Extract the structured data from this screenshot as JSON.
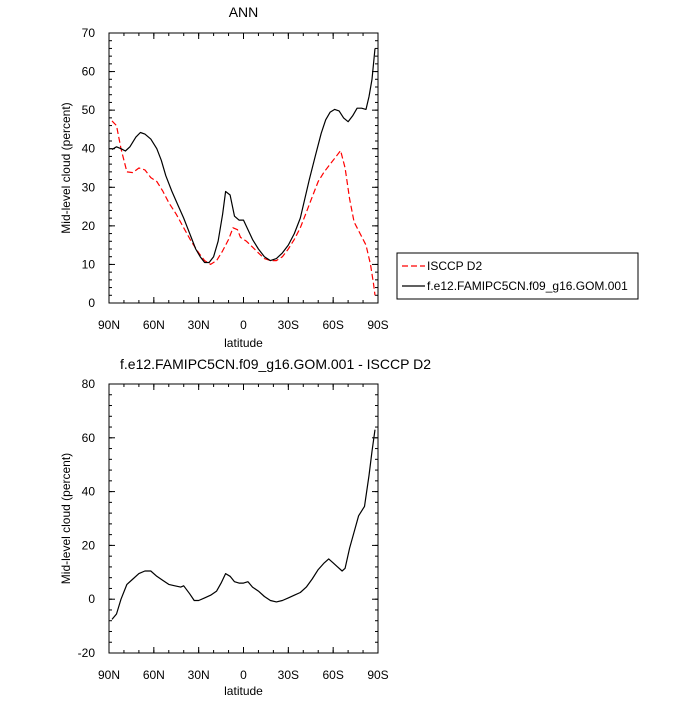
{
  "chart_data": [
    {
      "type": "line",
      "title": "ANN",
      "xlabel": "latitude",
      "ylabel": "Mid-level cloud (percent)",
      "xlim": [
        90,
        -90
      ],
      "ylim": [
        0,
        70
      ],
      "x_tick_values": [
        90,
        60,
        30,
        0,
        -30,
        -60,
        -90
      ],
      "x_tick_labels": [
        "90N",
        "60N",
        "30N",
        "0",
        "30S",
        "60S",
        "90S"
      ],
      "y_tick_values": [
        0,
        10,
        20,
        30,
        40,
        50,
        60,
        70
      ],
      "y_tick_labels": [
        "0",
        "10",
        "20",
        "30",
        "40",
        "50",
        "60",
        "70"
      ],
      "grid": false,
      "legend_position": "right, outside plot",
      "series": [
        {
          "name": "ISCCP D2",
          "color": "#ff0000",
          "dash": "dashed",
          "points": [
            [
              88,
              47.2
            ],
            [
              85,
              46
            ],
            [
              82,
              40
            ],
            [
              78,
              34
            ],
            [
              74,
              33.8
            ],
            [
              70,
              35
            ],
            [
              66,
              34.5
            ],
            [
              62,
              32.5
            ],
            [
              58,
              31.5
            ],
            [
              54,
              29
            ],
            [
              50,
              26
            ],
            [
              45,
              23
            ],
            [
              40,
              19.5
            ],
            [
              35,
              16
            ],
            [
              30,
              13
            ],
            [
              26,
              11
            ],
            [
              22,
              10
            ],
            [
              18,
              11
            ],
            [
              14,
              13.5
            ],
            [
              10,
              16.5
            ],
            [
              7,
              19.5
            ],
            [
              4,
              19
            ],
            [
              2,
              17
            ],
            [
              -2,
              16
            ],
            [
              -6,
              14.5
            ],
            [
              -10,
              13
            ],
            [
              -14,
              11.5
            ],
            [
              -18,
              11
            ],
            [
              -22,
              11
            ],
            [
              -26,
              12
            ],
            [
              -30,
              14
            ],
            [
              -34,
              16.5
            ],
            [
              -38,
              19.5
            ],
            [
              -42,
              23.5
            ],
            [
              -46,
              27.5
            ],
            [
              -50,
              31.5
            ],
            [
              -54,
              34
            ],
            [
              -58,
              36
            ],
            [
              -62,
              38
            ],
            [
              -65,
              39.5
            ],
            [
              -68,
              35
            ],
            [
              -71,
              27
            ],
            [
              -74,
              21
            ],
            [
              -78,
              18
            ],
            [
              -82,
              15
            ],
            [
              -85,
              10
            ],
            [
              -87,
              5
            ],
            [
              -88,
              2
            ]
          ]
        },
        {
          "name": "f.e12.FAMIPC5CN.f09_g16.GOM.001",
          "color": "#000000",
          "dash": "solid",
          "points": [
            [
              88,
              39.8
            ],
            [
              85,
              40.5
            ],
            [
              82,
              40
            ],
            [
              79,
              39.4
            ],
            [
              76,
              40.5
            ],
            [
              72,
              43
            ],
            [
              69,
              44.2
            ],
            [
              66,
              43.8
            ],
            [
              62,
              42.5
            ],
            [
              58,
              40
            ],
            [
              55,
              37
            ],
            [
              52,
              33
            ],
            [
              48,
              29
            ],
            [
              44,
              25.5
            ],
            [
              40,
              22
            ],
            [
              37,
              19
            ],
            [
              35,
              17
            ],
            [
              32,
              14
            ],
            [
              29,
              12
            ],
            [
              26,
              10.5
            ],
            [
              23,
              10.5
            ],
            [
              20,
              12
            ],
            [
              17,
              16
            ],
            [
              14,
              23
            ],
            [
              12,
              28.9
            ],
            [
              9,
              28
            ],
            [
              6,
              22.5
            ],
            [
              3,
              21.5
            ],
            [
              0,
              21.5
            ],
            [
              -3,
              19
            ],
            [
              -6,
              16.5
            ],
            [
              -10,
              14
            ],
            [
              -14,
              12
            ],
            [
              -18,
              11
            ],
            [
              -22,
              11.5
            ],
            [
              -26,
              13
            ],
            [
              -30,
              15
            ],
            [
              -34,
              18
            ],
            [
              -38,
              22
            ],
            [
              -41,
              27
            ],
            [
              -44,
              32
            ],
            [
              -48,
              38
            ],
            [
              -52,
              44
            ],
            [
              -55,
              47.5
            ],
            [
              -58,
              49.5
            ],
            [
              -61,
              50.2
            ],
            [
              -64,
              49.8
            ],
            [
              -67,
              48
            ],
            [
              -70,
              47
            ],
            [
              -73,
              48.5
            ],
            [
              -76,
              50.5
            ],
            [
              -79,
              50.5
            ],
            [
              -82,
              50.2
            ],
            [
              -84,
              53.5
            ],
            [
              -86,
              58
            ],
            [
              -88,
              66
            ]
          ]
        }
      ]
    },
    {
      "type": "line",
      "title": "f.e12.FAMIPC5CN.f09_g16.GOM.001 - ISCCP D2",
      "xlabel": "latitude",
      "ylabel": "Mid-level cloud (percent)",
      "xlim": [
        90,
        -90
      ],
      "ylim": [
        -20,
        80
      ],
      "x_tick_values": [
        90,
        60,
        30,
        0,
        -30,
        -60,
        -90
      ],
      "x_tick_labels": [
        "90N",
        "60N",
        "30N",
        "0",
        "30S",
        "60S",
        "90S"
      ],
      "y_tick_values": [
        -20,
        0,
        20,
        40,
        60,
        80
      ],
      "y_tick_labels": [
        "-20",
        "0",
        "20",
        "40",
        "60",
        "80"
      ],
      "grid": false,
      "series": [
        {
          "color": "#000000",
          "dash": "solid",
          "points": [
            [
              88,
              -7.5
            ],
            [
              85,
              -5.5
            ],
            [
              82,
              0
            ],
            [
              78,
              5.5
            ],
            [
              74,
              7.5
            ],
            [
              70,
              9.5
            ],
            [
              66,
              10.5
            ],
            [
              62,
              10.5
            ],
            [
              58,
              8.5
            ],
            [
              54,
              7
            ],
            [
              50,
              5.5
            ],
            [
              46,
              5
            ],
            [
              42,
              4.5
            ],
            [
              40,
              5
            ],
            [
              36,
              2
            ],
            [
              33,
              -0.5
            ],
            [
              30,
              -0.5
            ],
            [
              26,
              0.5
            ],
            [
              22,
              1.5
            ],
            [
              18,
              3
            ],
            [
              15,
              6
            ],
            [
              12,
              9.5
            ],
            [
              9,
              8.5
            ],
            [
              6,
              6.5
            ],
            [
              3,
              6
            ],
            [
              0,
              6
            ],
            [
              -3,
              6.5
            ],
            [
              -6,
              4.5
            ],
            [
              -10,
              3
            ],
            [
              -14,
              1
            ],
            [
              -18,
              -0.5
            ],
            [
              -22,
              -1
            ],
            [
              -26,
              -0.5
            ],
            [
              -30,
              0.5
            ],
            [
              -34,
              1.5
            ],
            [
              -38,
              2.5
            ],
            [
              -42,
              4.5
            ],
            [
              -46,
              7.5
            ],
            [
              -50,
              11
            ],
            [
              -54,
              13.5
            ],
            [
              -57,
              15
            ],
            [
              -60,
              13.5
            ],
            [
              -63,
              12
            ],
            [
              -66,
              10.5
            ],
            [
              -68,
              11.5
            ],
            [
              -71,
              19
            ],
            [
              -74,
              25
            ],
            [
              -77,
              31
            ],
            [
              -81,
              34.5
            ],
            [
              -84,
              46
            ],
            [
              -86,
              55
            ],
            [
              -88,
              63
            ]
          ]
        }
      ]
    }
  ]
}
